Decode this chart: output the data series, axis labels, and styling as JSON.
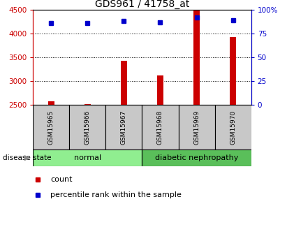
{
  "title": "GDS961 / 41758_at",
  "samples": [
    "GSM15965",
    "GSM15966",
    "GSM15967",
    "GSM15968",
    "GSM15969",
    "GSM15970"
  ],
  "counts": [
    2580,
    2515,
    3420,
    3120,
    4490,
    3920
  ],
  "percentile_ranks": [
    86,
    86,
    88,
    87,
    92,
    89
  ],
  "ylim_left": [
    2500,
    4500
  ],
  "ylim_right": [
    0,
    100
  ],
  "yticks_left": [
    2500,
    3000,
    3500,
    4000,
    4500
  ],
  "yticks_right": [
    0,
    25,
    50,
    75,
    100
  ],
  "bar_color": "#cc0000",
  "dot_color": "#0000cc",
  "normal_color": "#90ee90",
  "diabetic_color": "#5abf5a",
  "sample_box_color": "#c8c8c8",
  "left_tick_color": "#cc0000",
  "right_tick_color": "#0000cc",
  "legend_count": "count",
  "legend_percentile": "percentile rank within the sample",
  "disease_label": "disease state"
}
